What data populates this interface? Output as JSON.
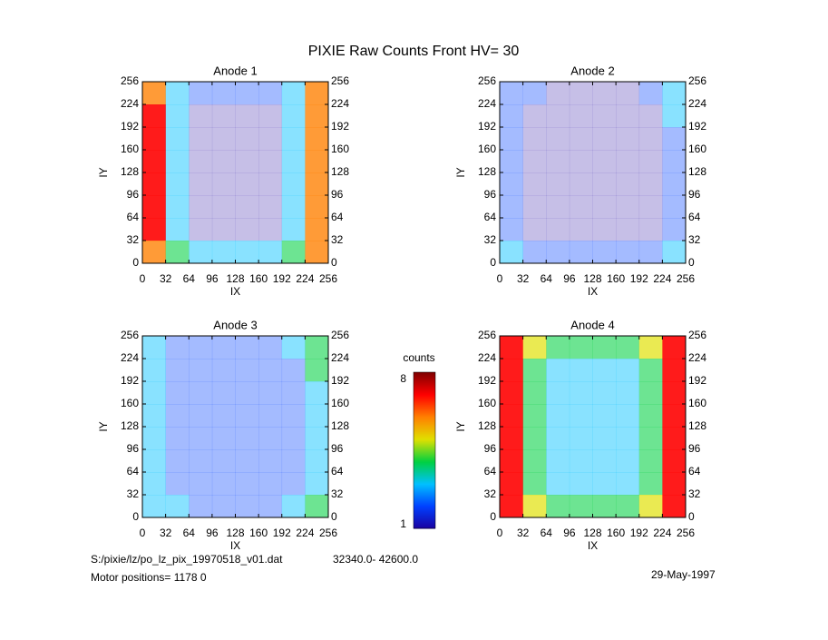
{
  "title": "PIXIE Raw Counts Front HV= 30",
  "chart_data": [
    {
      "type": "heatmap",
      "title": "Anode 1",
      "xlabel": "IX",
      "ylabel": "IY",
      "xlim": [
        0,
        256
      ],
      "ylim": [
        0,
        256
      ],
      "xticks": [
        0,
        32,
        64,
        96,
        128,
        160,
        192,
        224,
        256
      ],
      "yticks": [
        0,
        32,
        64,
        96,
        128,
        160,
        192,
        224,
        256
      ],
      "values": [
        [
          6,
          3,
          2,
          2,
          2,
          2,
          3,
          6
        ],
        [
          7,
          3,
          1,
          1,
          1,
          1,
          3,
          6
        ],
        [
          7,
          3,
          1,
          1,
          1,
          1,
          3,
          6
        ],
        [
          7,
          3,
          1,
          1,
          1,
          1,
          3,
          6
        ],
        [
          7,
          3,
          1,
          1,
          1,
          1,
          3,
          6
        ],
        [
          7,
          3,
          1,
          1,
          1,
          1,
          3,
          6
        ],
        [
          7,
          3,
          1,
          1,
          1,
          1,
          3,
          6
        ],
        [
          6,
          4,
          3,
          3,
          3,
          3,
          4,
          6
        ]
      ]
    },
    {
      "type": "heatmap",
      "title": "Anode 2",
      "xlabel": "IX",
      "ylabel": "IY",
      "xlim": [
        0,
        256
      ],
      "ylim": [
        0,
        256
      ],
      "xticks": [
        0,
        32,
        64,
        96,
        128,
        160,
        192,
        224,
        256
      ],
      "yticks": [
        0,
        32,
        64,
        96,
        128,
        160,
        192,
        224,
        256
      ],
      "values": [
        [
          2,
          2,
          1,
          1,
          1,
          1,
          2,
          3
        ],
        [
          2,
          1,
          1,
          1,
          1,
          1,
          1,
          3
        ],
        [
          2,
          1,
          1,
          1,
          1,
          1,
          1,
          2
        ],
        [
          2,
          1,
          1,
          1,
          1,
          1,
          1,
          2
        ],
        [
          2,
          1,
          1,
          1,
          1,
          1,
          1,
          2
        ],
        [
          2,
          1,
          1,
          1,
          1,
          1,
          1,
          2
        ],
        [
          2,
          1,
          1,
          1,
          1,
          1,
          1,
          2
        ],
        [
          3,
          2,
          2,
          2,
          2,
          2,
          2,
          3
        ]
      ]
    },
    {
      "type": "heatmap",
      "title": "Anode 3",
      "xlabel": "IX",
      "ylabel": "IY",
      "xlim": [
        0,
        256
      ],
      "ylim": [
        0,
        256
      ],
      "xticks": [
        0,
        32,
        64,
        96,
        128,
        160,
        192,
        224,
        256
      ],
      "yticks": [
        0,
        32,
        64,
        96,
        128,
        160,
        192,
        224,
        256
      ],
      "values": [
        [
          3,
          2,
          2,
          2,
          2,
          2,
          3,
          4
        ],
        [
          3,
          2,
          2,
          2,
          2,
          2,
          2,
          4
        ],
        [
          3,
          2,
          2,
          2,
          2,
          2,
          2,
          3
        ],
        [
          3,
          2,
          2,
          2,
          2,
          2,
          2,
          3
        ],
        [
          3,
          2,
          2,
          2,
          2,
          2,
          2,
          3
        ],
        [
          3,
          2,
          2,
          2,
          2,
          2,
          2,
          3
        ],
        [
          3,
          2,
          2,
          2,
          2,
          2,
          2,
          3
        ],
        [
          3,
          3,
          2,
          2,
          2,
          2,
          3,
          4
        ]
      ]
    },
    {
      "type": "heatmap",
      "title": "Anode 4",
      "xlabel": "IX",
      "ylabel": "IY",
      "xlim": [
        0,
        256
      ],
      "ylim": [
        0,
        256
      ],
      "xticks": [
        0,
        32,
        64,
        96,
        128,
        160,
        192,
        224,
        256
      ],
      "yticks": [
        0,
        32,
        64,
        96,
        128,
        160,
        192,
        224,
        256
      ],
      "values": [
        [
          7,
          5,
          4,
          4,
          4,
          4,
          5,
          7
        ],
        [
          7,
          4,
          3,
          3,
          3,
          3,
          4,
          7
        ],
        [
          7,
          4,
          3,
          3,
          3,
          3,
          4,
          7
        ],
        [
          7,
          4,
          3,
          3,
          3,
          3,
          4,
          7
        ],
        [
          7,
          4,
          3,
          3,
          3,
          3,
          4,
          7
        ],
        [
          7,
          4,
          3,
          3,
          3,
          3,
          4,
          7
        ],
        [
          7,
          4,
          3,
          3,
          3,
          3,
          4,
          7
        ],
        [
          7,
          5,
          4,
          4,
          4,
          4,
          5,
          7
        ]
      ]
    }
  ],
  "colorbar": {
    "label": "counts",
    "zlim": [
      1,
      8
    ],
    "ticks": [
      1,
      8
    ],
    "colors": [
      "#1a00a0",
      "#0040ff",
      "#00c0ff",
      "#00d040",
      "#e0e000",
      "#ff8000",
      "#ff0000",
      "#800000"
    ]
  },
  "footer": {
    "file": "S:/pixie/lz/po_lz_pix_19970518_v01.dat",
    "range": "32340.0- 42600.0",
    "motor": "Motor positions= 1178 0",
    "date": "29-May-1997"
  }
}
